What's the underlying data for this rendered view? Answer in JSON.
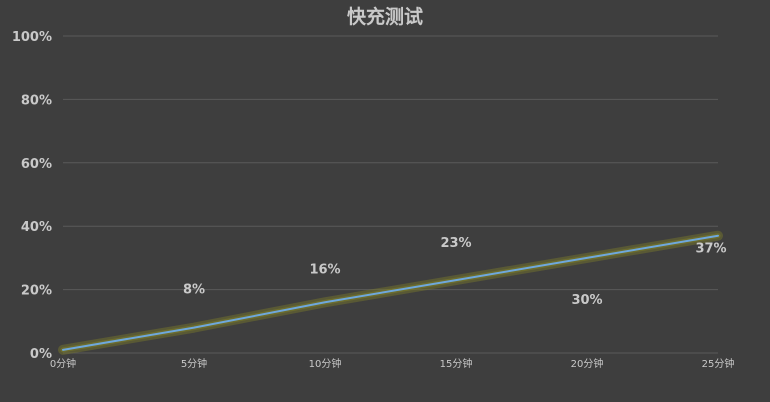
{
  "chart_data": {
    "type": "line",
    "title": "快充测试",
    "xlabel": "",
    "ylabel": "",
    "categories": [
      "0分钟",
      "5分钟",
      "10分钟",
      "15分钟",
      "20分钟",
      "25分钟"
    ],
    "series": [
      {
        "values": [
          1,
          8,
          16,
          23,
          30,
          37
        ],
        "color": "#6fa8dc",
        "glow_color": "#7a7a2a"
      }
    ],
    "data_labels": [
      "",
      "8%",
      "16%",
      "23%",
      "30%",
      "37%"
    ],
    "ylim": [
      0,
      100
    ],
    "yticks": [
      "0%",
      "20%",
      "40%",
      "60%",
      "80%",
      "100%"
    ],
    "grid": true,
    "legend": "none"
  }
}
